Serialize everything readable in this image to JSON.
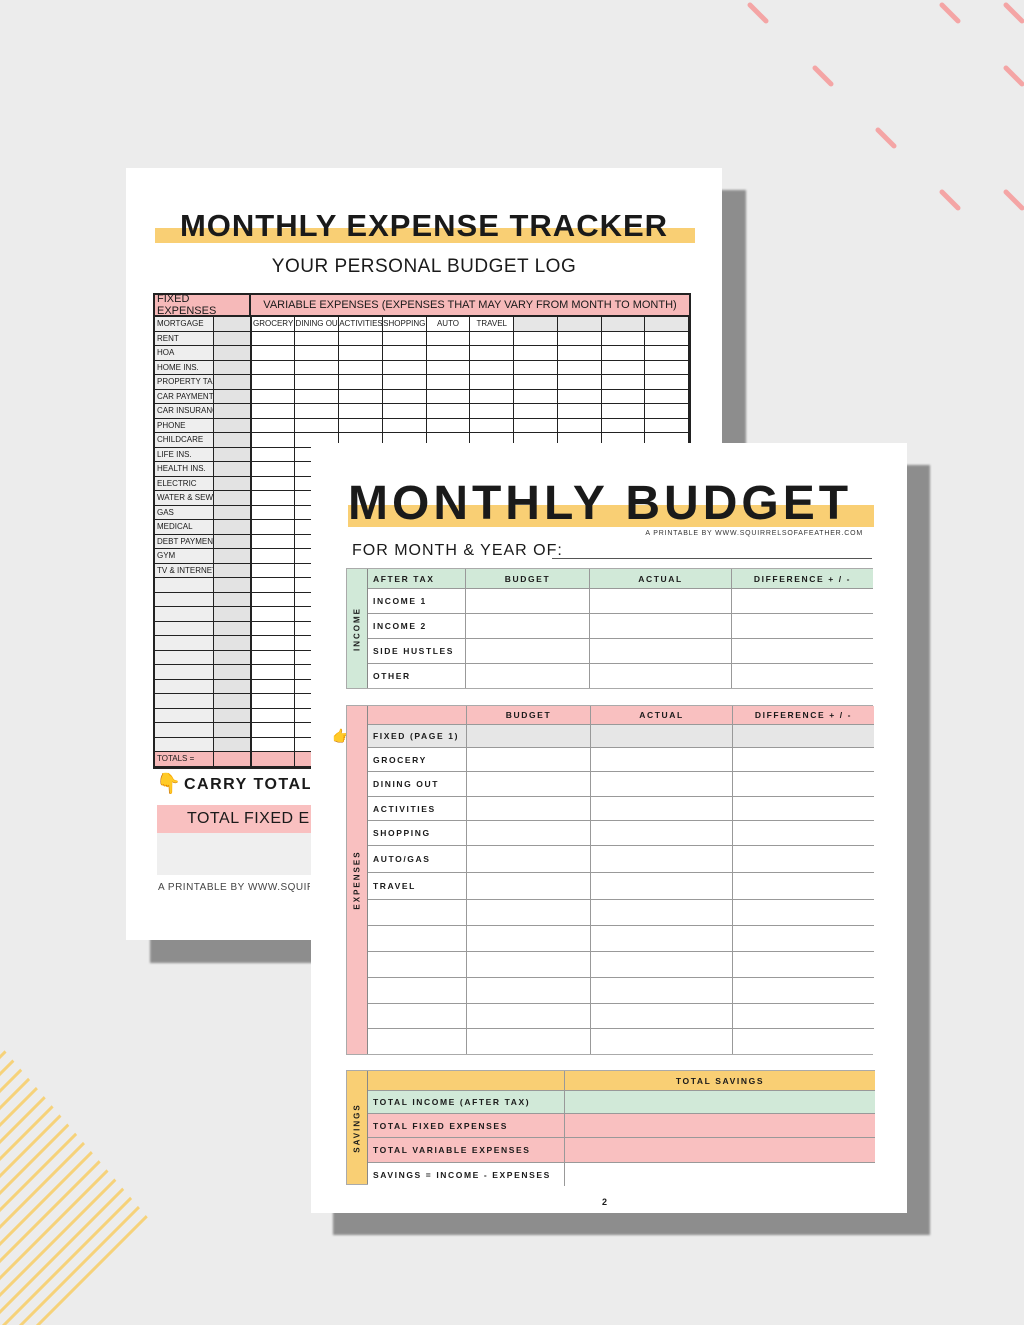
{
  "colors": {
    "background": "#ececec",
    "yellow": "#f9cf74",
    "pink": "#f9c0c0",
    "green": "#d1e9d8",
    "gray": "#e6e6e6",
    "dash_pink": "#f4a5a5",
    "stripe_yellow": "#f6d27a"
  },
  "back_page": {
    "title": "MONTHLY EXPENSE TRACKER",
    "subtitle": "YOUR PERSONAL BUDGET LOG",
    "fixed_header": "FIXED EXPENSES",
    "variable_header": "VARIABLE EXPENSES (EXPENSES THAT MAY VARY FROM MONTH TO MONTH)",
    "fixed_items": [
      "MORTGAGE",
      "RENT",
      "HOA",
      "HOME INS.",
      "PROPERTY TAX",
      "CAR PAYMENT",
      "CAR INSURANCE",
      "PHONE",
      "CHILDCARE",
      "LIFE INS.",
      "HEALTH INS.",
      "ELECTRIC",
      "WATER & SEWER",
      "GAS",
      "MEDICAL",
      "DEBT PAYMENTS",
      "GYM",
      "TV & INTERNET"
    ],
    "variable_columns": [
      "GROCERY",
      "DINING OUT",
      "ACTIVITIES",
      "SHOPPING",
      "AUTO",
      "TRAVEL",
      "",
      "",
      "",
      ""
    ],
    "totals_label": "TOTALS =",
    "carry_totals": "CARRY TOTALS",
    "total_fixed": "TOTAL FIXED EX",
    "credit": "A PRINTABLE BY WWW.SQUIR",
    "hand_icon": "pointing-down-hand"
  },
  "front_page": {
    "title": "MONTHLY BUDGET",
    "credit": "A PRINTABLE BY WWW.SQUIRRELSOFAFEATHER.COM",
    "month_label": "FOR MONTH & YEAR OF:",
    "income": {
      "side_label": "INCOME",
      "headers": [
        "AFTER TAX",
        "BUDGET",
        "ACTUAL",
        "DIFFERENCE + / -"
      ],
      "rows": [
        "INCOME 1",
        "INCOME 2",
        "SIDE HUSTLES",
        "OTHER"
      ]
    },
    "expenses": {
      "side_label": "EXPENSES",
      "headers": [
        "",
        "BUDGET",
        "ACTUAL",
        "DIFFERENCE + / -"
      ],
      "rows": [
        "FIXED (PAGE 1)",
        "GROCERY",
        "DINING OUT",
        "ACTIVITIES",
        "SHOPPING",
        "AUTO/GAS",
        "TRAVEL",
        "",
        "",
        "",
        "",
        "",
        ""
      ],
      "hand_icon": "pointing-right-hand"
    },
    "savings": {
      "side_label": "SAVINGS",
      "header": "TOTAL SAVINGS",
      "rows": [
        "TOTAL INCOME (AFTER TAX)",
        "TOTAL FIXED EXPENSES",
        "TOTAL VARIABLE EXPENSES",
        "SAVINGS = INCOME - EXPENSES"
      ]
    },
    "page_number": "2"
  }
}
